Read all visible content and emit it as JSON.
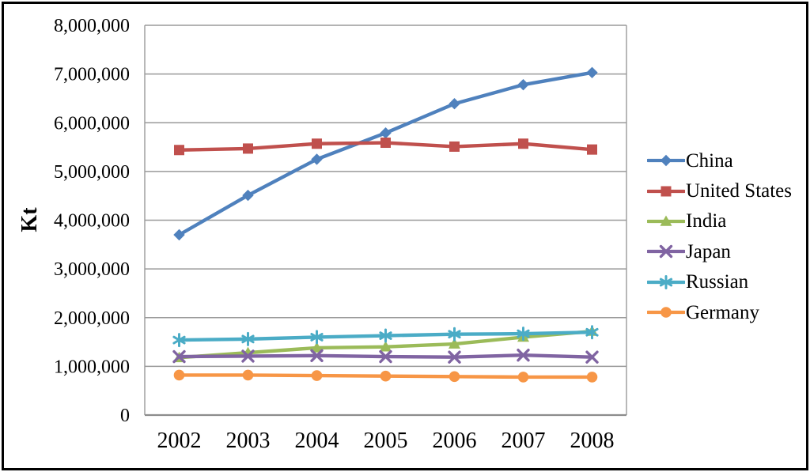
{
  "chart_data": {
    "type": "line",
    "title": "",
    "xlabel": "",
    "ylabel": "Kt",
    "categories": [
      "2002",
      "2003",
      "2004",
      "2005",
      "2006",
      "2007",
      "2008"
    ],
    "ylim": [
      0,
      8000000
    ],
    "ytick_interval": 1000000,
    "ytick_labels": [
      "0",
      "1,000,000",
      "2,000,000",
      "3,000,000",
      "4,000,000",
      "5,000,000",
      "6,000,000",
      "7,000,000",
      "8,000,000"
    ],
    "grid": true,
    "legend_position": "right",
    "axis_color": "#8c8c8c",
    "gridline_color": "#9a9a9a",
    "series": [
      {
        "name": "China",
        "color": "#4F81BD",
        "marker": "diamond",
        "values": [
          3700000,
          4510000,
          5250000,
          5790000,
          6390000,
          6780000,
          7030000
        ]
      },
      {
        "name": "United States",
        "color": "#C0504D",
        "marker": "square",
        "values": [
          5440000,
          5470000,
          5570000,
          5590000,
          5510000,
          5570000,
          5450000
        ]
      },
      {
        "name": "India",
        "color": "#9BBB59",
        "marker": "triangle",
        "values": [
          1180000,
          1280000,
          1380000,
          1400000,
          1460000,
          1600000,
          1720000
        ]
      },
      {
        "name": "Japan",
        "color": "#8064A2",
        "marker": "x",
        "values": [
          1200000,
          1210000,
          1220000,
          1200000,
          1190000,
          1230000,
          1190000
        ]
      },
      {
        "name": "Russian",
        "color": "#4BACC6",
        "marker": "asterisk",
        "values": [
          1540000,
          1560000,
          1600000,
          1630000,
          1660000,
          1670000,
          1700000
        ]
      },
      {
        "name": "Germany",
        "color": "#F79646",
        "marker": "circle",
        "values": [
          820000,
          820000,
          810000,
          800000,
          790000,
          780000,
          780000
        ]
      }
    ]
  }
}
